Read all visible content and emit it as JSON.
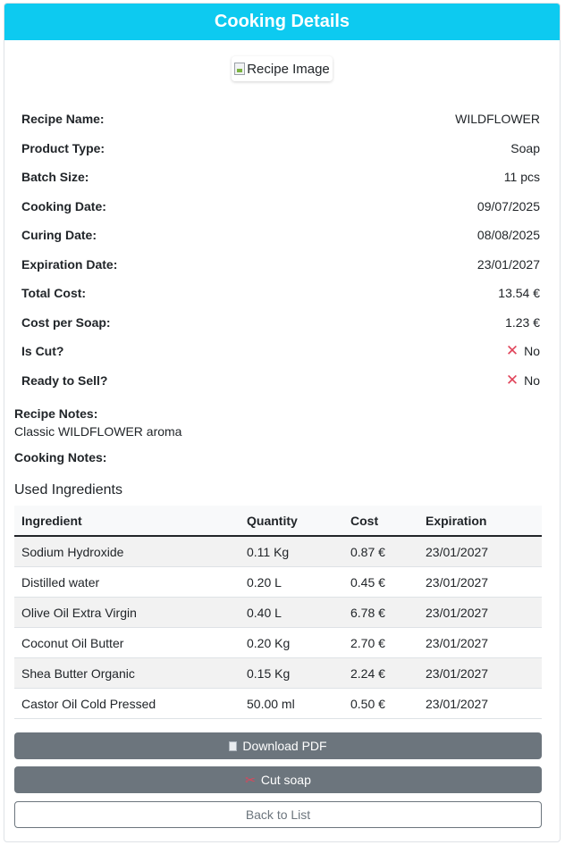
{
  "header": {
    "title": "Cooking Details"
  },
  "image": {
    "alt": "Recipe Image"
  },
  "details": [
    {
      "label": "Recipe Name:",
      "value": "WILDFLOWER"
    },
    {
      "label": "Product Type:",
      "value": "Soap"
    },
    {
      "label": "Batch Size:",
      "value": "11 pcs"
    },
    {
      "label": "Cooking Date:",
      "value": "09/07/2025"
    },
    {
      "label": "Curing Date:",
      "value": "08/08/2025"
    },
    {
      "label": "Expiration Date:",
      "value": "23/01/2027"
    },
    {
      "label": "Total Cost:",
      "value": "13.54 €"
    },
    {
      "label": "Cost per Soap:",
      "value": "1.23 €"
    },
    {
      "label": "Is Cut?",
      "value": "No",
      "icon": "x-mark-icon"
    },
    {
      "label": "Ready to Sell?",
      "value": "No",
      "icon": "x-mark-icon"
    }
  ],
  "notes": {
    "recipe_label": "Recipe Notes:",
    "recipe_value": "Classic WILDFLOWER aroma",
    "cooking_label": "Cooking Notes:",
    "cooking_value": ""
  },
  "ingredients": {
    "title": "Used Ingredients",
    "headers": [
      "Ingredient",
      "Quantity",
      "Cost",
      "Expiration"
    ],
    "rows": [
      [
        "Sodium Hydroxide",
        "0.11 Kg",
        "0.87 €",
        "23/01/2027"
      ],
      [
        "Distilled water",
        "0.20 L",
        "0.45 €",
        "23/01/2027"
      ],
      [
        "Olive Oil Extra Virgin",
        "0.40 L",
        "6.78 €",
        "23/01/2027"
      ],
      [
        "Coconut Oil Butter",
        "0.20 Kg",
        "2.70 €",
        "23/01/2027"
      ],
      [
        "Shea Butter Organic",
        "0.15 Kg",
        "2.24 €",
        "23/01/2027"
      ],
      [
        "Castor Oil Cold Pressed",
        "50.00 ml",
        "0.50 €",
        "23/01/2027"
      ]
    ]
  },
  "buttons": {
    "download_pdf": "Download PDF",
    "cut_soap": "Cut soap",
    "back": "Back to List"
  },
  "colors": {
    "header_bg": "#0dcaf0",
    "button_secondary": "#6c757d",
    "x_mark": "#e0445a"
  }
}
